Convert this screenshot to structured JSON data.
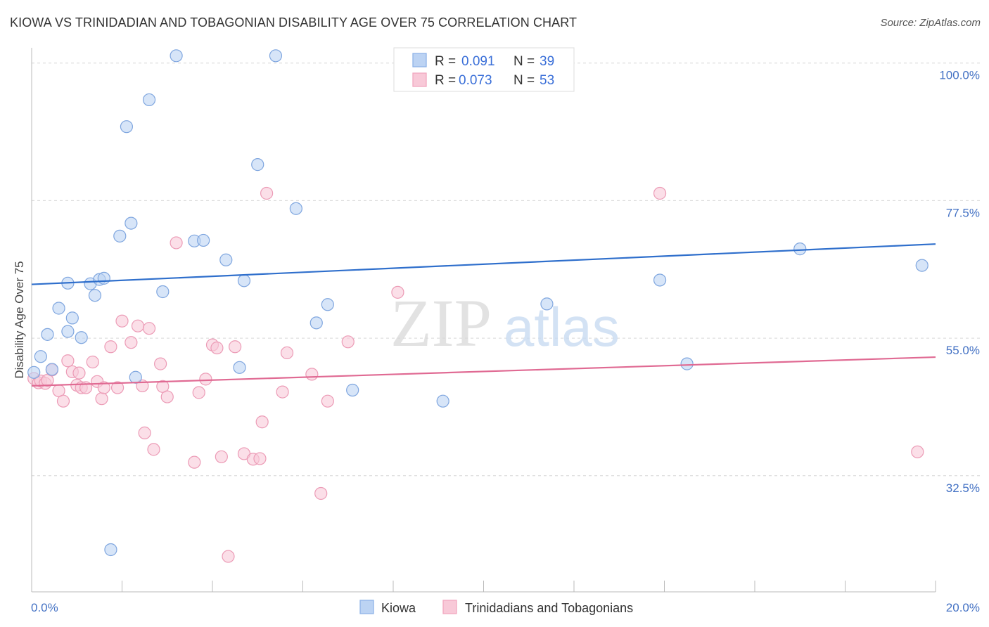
{
  "header": {
    "title": "KIOWA VS TRINIDADIAN AND TOBAGONIAN DISABILITY AGE OVER 75 CORRELATION CHART",
    "source": "Source: ZipAtlas.com"
  },
  "watermark": {
    "zip": "ZIP",
    "atlas": "atlas"
  },
  "legend": {
    "rows": [
      {
        "r_label": "R = ",
        "r_value": "0.091",
        "n_label": "N = ",
        "n_value": "39",
        "color": "#8fb3e8"
      },
      {
        "r_label": "R = ",
        "r_value": "0.073",
        "n_label": "N = ",
        "n_value": "53",
        "color": "#f2a7bf"
      }
    ]
  },
  "colors": {
    "kiowa_fill": "#bcd3f3",
    "kiowa_stroke": "#7fa6df",
    "kiowa_line": "#2f6fcc",
    "trini_fill": "#f8c9d8",
    "trini_stroke": "#ec9bb6",
    "trini_line": "#e06a93",
    "tick_label": "#4472c4"
  },
  "chart_data": {
    "type": "scatter",
    "title": "KIOWA VS TRINIDADIAN AND TOBAGONIAN DISABILITY AGE OVER 75 CORRELATION CHART",
    "ylabel": "Disability Age Over 75",
    "xlabel": "",
    "xlim": [
      0,
      20
    ],
    "ylim": [
      13.5,
      102.5
    ],
    "x_tick_labels": [
      "0.0%",
      "20.0%"
    ],
    "y_ticks": [
      32.5,
      55.0,
      77.5,
      100.0
    ],
    "y_tick_labels": [
      "32.5%",
      "55.0%",
      "77.5%",
      "100.0%"
    ],
    "grid": "horizontal dashed",
    "legend_position": "top-center",
    "series": [
      {
        "name": "Kiowa",
        "points": [
          [
            0.2,
            52.0
          ],
          [
            0.35,
            55.6
          ],
          [
            0.45,
            49.9
          ],
          [
            0.6,
            59.9
          ],
          [
            0.8,
            64.0
          ],
          [
            0.8,
            56.1
          ],
          [
            0.9,
            58.3
          ],
          [
            1.1,
            55.1
          ],
          [
            1.3,
            63.9
          ],
          [
            1.4,
            62.0
          ],
          [
            1.5,
            64.6
          ],
          [
            1.6,
            64.8
          ],
          [
            1.95,
            71.7
          ],
          [
            2.1,
            89.6
          ],
          [
            2.2,
            73.8
          ],
          [
            2.3,
            48.6
          ],
          [
            2.6,
            94.0
          ],
          [
            2.9,
            62.6
          ],
          [
            3.2,
            101.2
          ],
          [
            3.6,
            70.9
          ],
          [
            3.8,
            71.0
          ],
          [
            4.3,
            67.8
          ],
          [
            4.6,
            50.2
          ],
          [
            4.7,
            64.4
          ],
          [
            5.0,
            83.4
          ],
          [
            5.4,
            101.2
          ],
          [
            5.85,
            76.2
          ],
          [
            6.3,
            57.5
          ],
          [
            6.55,
            60.5
          ],
          [
            7.1,
            46.5
          ],
          [
            9.1,
            44.7
          ],
          [
            9.2,
            101.0
          ],
          [
            11.4,
            60.6
          ],
          [
            13.9,
            64.5
          ],
          [
            14.5,
            50.8
          ],
          [
            17.0,
            69.6
          ],
          [
            19.7,
            66.9
          ],
          [
            1.75,
            20.4
          ],
          [
            0.05,
            49.4
          ]
        ]
      },
      {
        "name": "Trinidadians and Tobagonians",
        "points": [
          [
            0.05,
            48.4
          ],
          [
            0.15,
            47.7
          ],
          [
            0.2,
            48.0
          ],
          [
            0.3,
            47.6
          ],
          [
            0.35,
            48.1
          ],
          [
            0.45,
            49.8
          ],
          [
            0.6,
            46.4
          ],
          [
            0.7,
            44.7
          ],
          [
            0.8,
            51.3
          ],
          [
            0.9,
            49.5
          ],
          [
            1.0,
            47.3
          ],
          [
            1.05,
            49.3
          ],
          [
            1.1,
            46.9
          ],
          [
            1.2,
            46.9
          ],
          [
            1.35,
            51.1
          ],
          [
            1.45,
            47.9
          ],
          [
            1.55,
            45.1
          ],
          [
            1.6,
            46.9
          ],
          [
            1.75,
            53.6
          ],
          [
            1.9,
            46.9
          ],
          [
            2.0,
            57.8
          ],
          [
            2.2,
            54.3
          ],
          [
            2.35,
            57.0
          ],
          [
            2.45,
            47.2
          ],
          [
            2.5,
            39.5
          ],
          [
            2.6,
            56.6
          ],
          [
            2.7,
            36.8
          ],
          [
            2.85,
            50.8
          ],
          [
            2.9,
            47.1
          ],
          [
            3.0,
            45.4
          ],
          [
            3.2,
            70.6
          ],
          [
            3.6,
            34.7
          ],
          [
            3.7,
            46.1
          ],
          [
            3.85,
            48.3
          ],
          [
            4.0,
            53.9
          ],
          [
            4.1,
            53.4
          ],
          [
            4.2,
            35.6
          ],
          [
            4.35,
            19.3
          ],
          [
            4.5,
            53.6
          ],
          [
            4.7,
            36.1
          ],
          [
            4.9,
            35.2
          ],
          [
            5.05,
            35.3
          ],
          [
            5.1,
            41.3
          ],
          [
            5.2,
            78.7
          ],
          [
            5.55,
            46.2
          ],
          [
            5.65,
            52.6
          ],
          [
            6.2,
            49.1
          ],
          [
            6.4,
            29.6
          ],
          [
            6.55,
            44.7
          ],
          [
            7.0,
            54.4
          ],
          [
            8.1,
            62.5
          ],
          [
            13.9,
            78.7
          ],
          [
            19.6,
            36.4
          ]
        ]
      }
    ],
    "trendlines": [
      {
        "series": "Kiowa",
        "x": [
          0,
          20
        ],
        "y": [
          63.8,
          70.4
        ]
      },
      {
        "series": "Trinidadians and Tobagonians",
        "x": [
          0,
          20
        ],
        "y": [
          47.2,
          51.9
        ]
      }
    ]
  },
  "bottom_legend": {
    "items": [
      {
        "label": "Kiowa"
      },
      {
        "label": "Trinidadians and Tobagonians"
      }
    ]
  }
}
